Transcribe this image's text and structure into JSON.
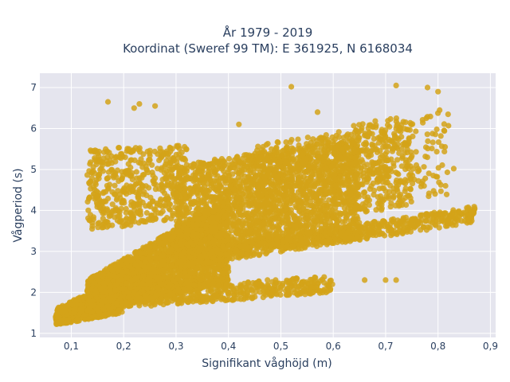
{
  "chart_data": {
    "type": "scatter",
    "title_lines": [
      "År 1979 - 2019",
      "Koordinat (Sweref 99 TM): E 361925, N 6168034"
    ],
    "xlabel": "Signifikant våghöjd (m)",
    "ylabel": "Vågperiod (s)",
    "xlim": [
      0.04,
      0.91
    ],
    "ylim": [
      0.9,
      7.35
    ],
    "x_ticks": [
      0.1,
      0.2,
      0.3,
      0.4,
      0.5,
      0.6,
      0.7,
      0.8,
      0.9
    ],
    "x_tick_labels": [
      "0,1",
      "0,2",
      "0,3",
      "0,4",
      "0,5",
      "0,6",
      "0,7",
      "0,8",
      "0,9"
    ],
    "y_ticks": [
      1,
      2,
      3,
      4,
      5,
      6,
      7
    ],
    "y_tick_labels": [
      "1",
      "2",
      "3",
      "4",
      "5",
      "6",
      "7"
    ],
    "grid": true,
    "legend": "none",
    "marker_color": "#d4a319",
    "plot_background": "#e5e5ee",
    "series": [
      {
        "clusters": [
          {
            "x_range": [
              0.07,
              0.2
            ],
            "y_at_x_start": [
              1.2,
              1.6
            ],
            "y_at_x_end": [
              1.5,
              2.4
            ],
            "count": 700
          },
          {
            "x_range": [
              0.13,
              0.4
            ],
            "y_at_x_start": [
              1.5,
              2.3
            ],
            "y_at_x_end": [
              2.2,
              4.3
            ],
            "count": 2400
          },
          {
            "x_range": [
              0.2,
              0.6
            ],
            "y_at_x_start": [
              1.6,
              2.1
            ],
            "y_at_x_end": [
              2.0,
              2.4
            ],
            "count": 450
          },
          {
            "x_range": [
              0.3,
              0.87
            ],
            "y_at_x_start": [
              2.6,
              3.0
            ],
            "y_at_x_end": [
              3.7,
              4.1
            ],
            "count": 700
          },
          {
            "x_range": [
              0.3,
              0.65
            ],
            "y_at_x_start": [
              2.8,
              5.1
            ],
            "y_at_x_end": [
              3.3,
              5.8
            ],
            "count": 2000
          },
          {
            "x_range": [
              0.45,
              0.75
            ],
            "y_at_x_start": [
              3.6,
              5.6
            ],
            "y_at_x_end": [
              4.1,
              6.2
            ],
            "count": 600
          },
          {
            "x_range": [
              0.13,
              0.32
            ],
            "y_at_x_start": [
              3.5,
              5.5
            ],
            "y_at_x_end": [
              3.8,
              5.6
            ],
            "count": 500
          },
          {
            "x_range": [
              0.6,
              0.82
            ],
            "y_at_x_start": [
              4.5,
              6.0
            ],
            "y_at_x_end": [
              4.3,
              6.5
            ],
            "count": 200
          }
        ],
        "outliers": [
          [
            0.17,
            6.65
          ],
          [
            0.22,
            6.5
          ],
          [
            0.23,
            6.6
          ],
          [
            0.26,
            6.55
          ],
          [
            0.52,
            7.02
          ],
          [
            0.72,
            7.05
          ],
          [
            0.78,
            7.0
          ],
          [
            0.8,
            6.9
          ],
          [
            0.83,
            5.02
          ],
          [
            0.87,
            4.05
          ],
          [
            0.66,
            2.3
          ],
          [
            0.7,
            2.3
          ],
          [
            0.72,
            2.3
          ],
          [
            0.42,
            6.1
          ],
          [
            0.57,
            6.4
          ]
        ]
      }
    ]
  }
}
